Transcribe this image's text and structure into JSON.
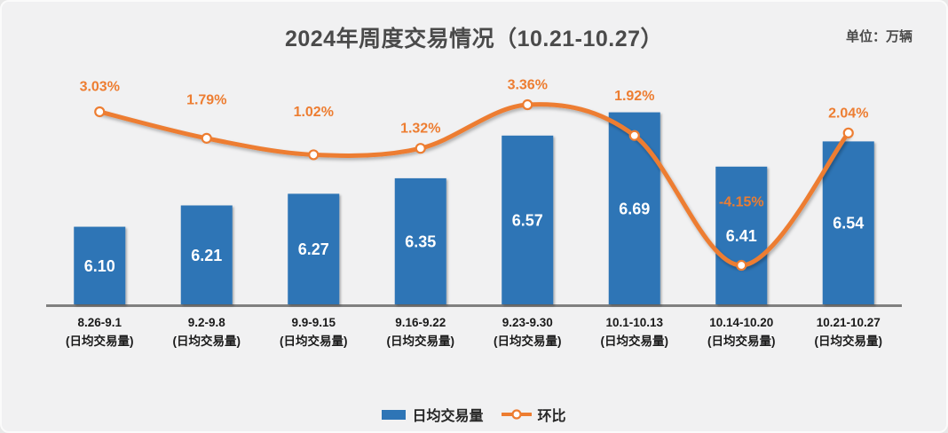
{
  "panel": {
    "title": "2024年周度交易情况（10.21-10.27）",
    "unit_label": "单位：万辆"
  },
  "legend": {
    "bar_label": "日均交易量",
    "line_label": "环比"
  },
  "colors": {
    "bar": "#2E75B6",
    "line": "#ED7D31",
    "marker_fill": "#FFFFFF",
    "background": "#F1F1F2",
    "axis": "#808080",
    "title_text": "#4A4A4A",
    "x_label_text": "#1A1A1A",
    "bar_value_text": "#FFFFFF",
    "pct_label_text": "#ED7D31"
  },
  "chart_data": {
    "type": "bar+line",
    "title": "2024年周度交易情况（10.21-10.27）",
    "unit": "单位：万辆",
    "categories": [
      "8.26-9.1",
      "9.2-9.8",
      "9.9-9.15",
      "9.16-9.22",
      "9.23-9.30",
      "10.1-10.13",
      "10.14-10.20",
      "10.21-10.27"
    ],
    "category_sublabel": "(日均交易量)",
    "series": [
      {
        "name": "日均交易量",
        "type": "bar",
        "color": "#2E75B6",
        "values": [
          6.1,
          6.21,
          6.27,
          6.35,
          6.57,
          6.69,
          6.41,
          6.54
        ],
        "value_labels": [
          "6.10",
          "6.21",
          "6.27",
          "6.35",
          "6.57",
          "6.69",
          "6.41",
          "6.54"
        ]
      },
      {
        "name": "环比",
        "type": "line",
        "color": "#ED7D31",
        "values": [
          3.03,
          1.79,
          1.02,
          1.32,
          3.36,
          1.92,
          -4.15,
          2.04
        ],
        "value_labels": [
          "3.03%",
          "1.79%",
          "1.02%",
          "1.32%",
          "3.36%",
          "1.92%",
          "-4.15%",
          "2.04%"
        ]
      }
    ],
    "y_axis": {
      "visible": false,
      "primary_baseline": 5.7,
      "grid": false
    },
    "x_axis": {
      "visible": true,
      "line_color": "#808080"
    },
    "legend_position": "bottom",
    "data_labels": "on"
  }
}
